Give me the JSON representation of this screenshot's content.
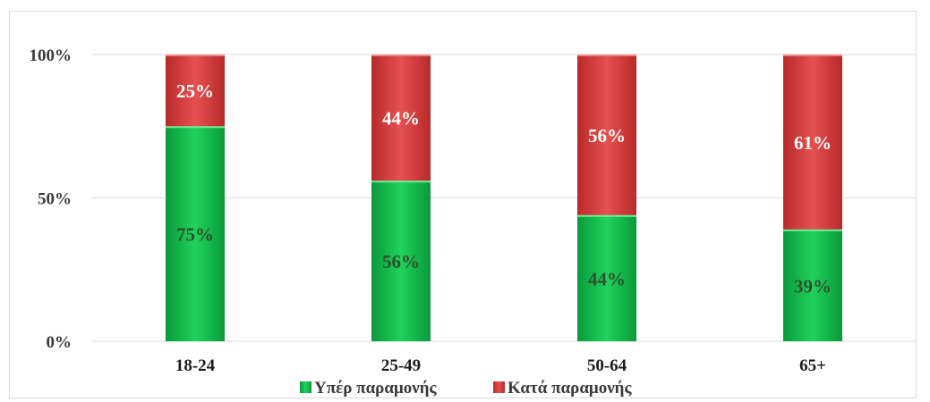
{
  "chart_data": {
    "type": "bar",
    "stacked": true,
    "categories": [
      "18-24",
      "25-49",
      "50-64",
      "65+"
    ],
    "series": [
      {
        "name": "Υπέρ παραμονής",
        "values": [
          75,
          56,
          44,
          39
        ],
        "labels": [
          "75%",
          "56%",
          "44%",
          "39%"
        ],
        "color": "#12b54a",
        "label_color": "#2f4f2f"
      },
      {
        "name": "Κατά παραμονής",
        "values": [
          25,
          44,
          56,
          61
        ],
        "labels": [
          "25%",
          "44%",
          "56%",
          "61%"
        ],
        "color": "#d23c3c",
        "label_color": "#ffffff"
      }
    ],
    "ylim": [
      0,
      100
    ],
    "yticks": [
      "0%",
      "50%",
      "100%"
    ],
    "ytick_values": [
      0,
      50,
      100
    ],
    "grid": true,
    "legend_position": "bottom",
    "title": "",
    "xlabel": "",
    "ylabel": ""
  }
}
